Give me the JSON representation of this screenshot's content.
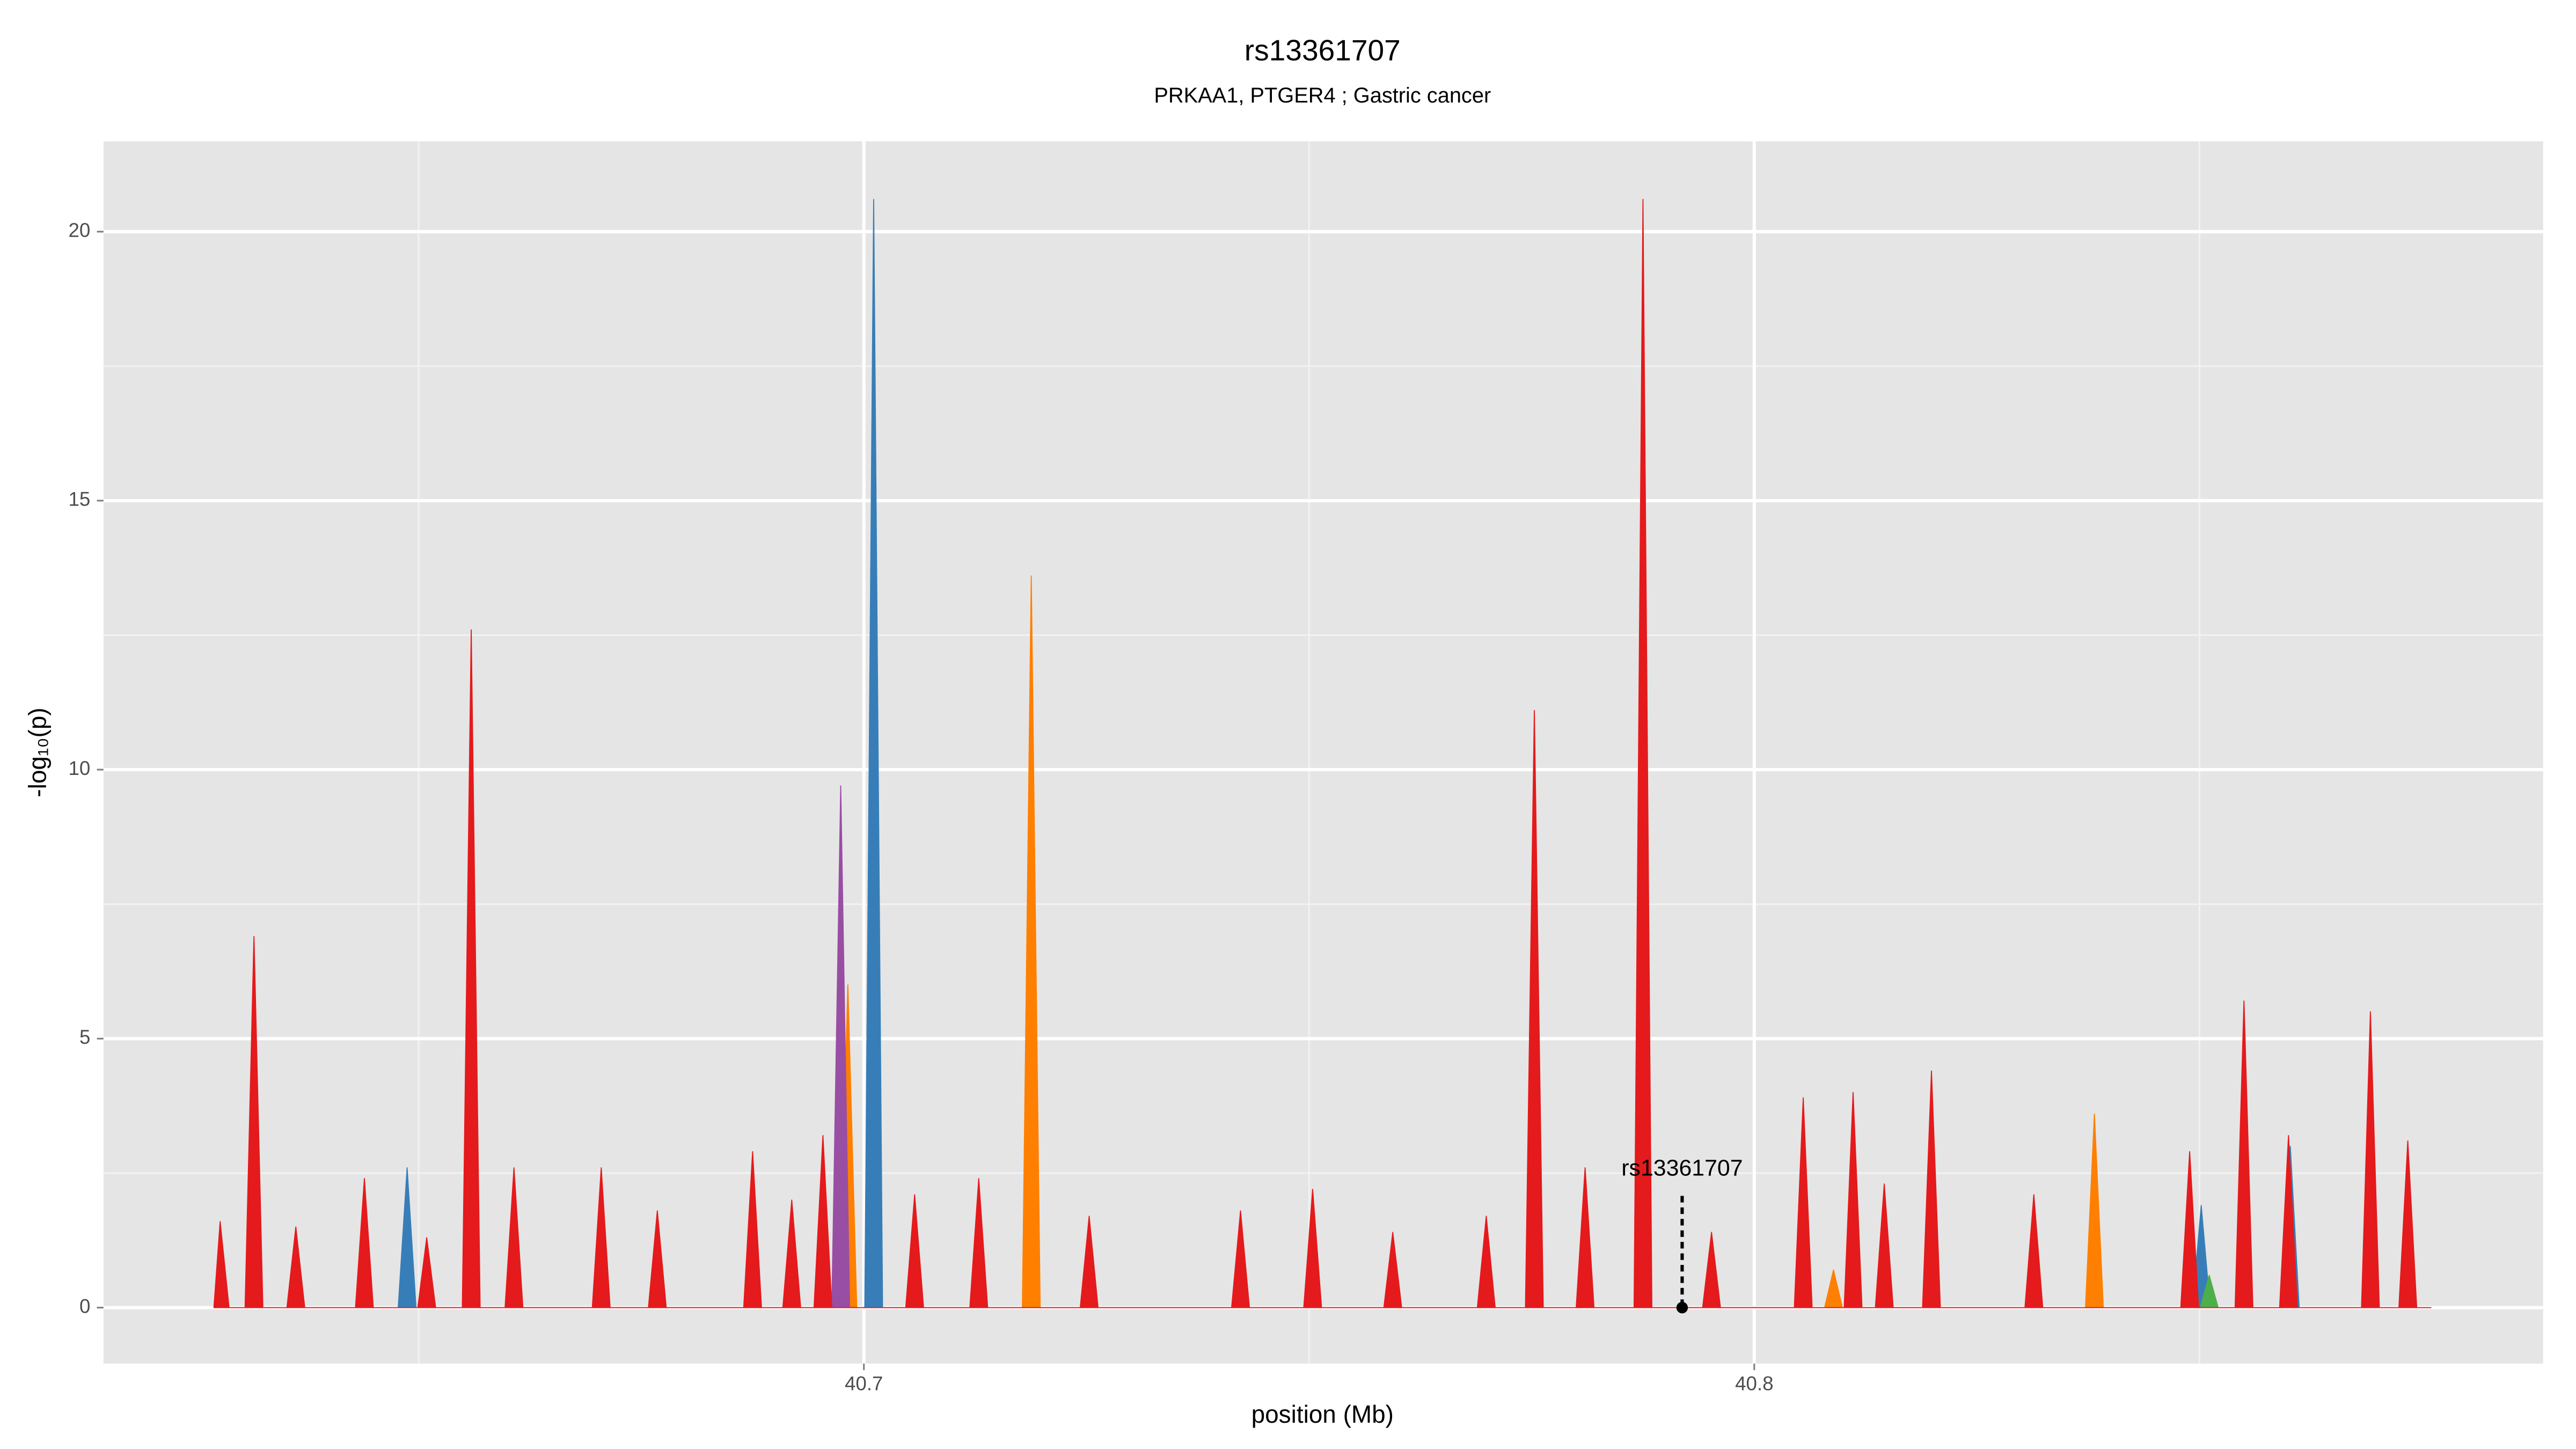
{
  "chart_data": {
    "type": "area",
    "title": "rs13361707",
    "subtitle": "PRKAA1, PTGER4 ; Gastric cancer",
    "x_label": "position (Mb)",
    "y_label": "-log₁₀(p)",
    "xlim": [
      40.6146,
      40.8886
    ],
    "ylim": [
      -1.04,
      21.68
    ],
    "xticks": [
      40.7,
      40.8
    ],
    "yticks": [
      0,
      5,
      10,
      15,
      20
    ],
    "grid": true,
    "annotation": {
      "label": "rs13361707",
      "x": 40.7919,
      "y": 0
    },
    "series": [
      {
        "color": "#ff7f00",
        "x": [
          40.6972,
          40.6982,
          40.6992,
          40.7178,
          40.7188,
          40.7198,
          40.8079,
          40.8089,
          40.8099,
          40.8372,
          40.8382,
          40.8392
        ],
        "values": [
          0,
          6,
          0,
          0,
          13.6,
          0,
          0,
          0.7,
          0,
          0,
          3.6,
          0
        ]
      },
      {
        "color": "#984ea3",
        "x": [
          40.6964,
          40.6974,
          40.6984
        ],
        "values": [
          0,
          9.7,
          0
        ]
      },
      {
        "color": "#377eb8",
        "x": [
          40.6477,
          40.6487,
          40.6497,
          40.7001,
          40.7011,
          40.7021,
          40.8492,
          40.8502,
          40.8512,
          40.8592,
          40.8602,
          40.8612
        ],
        "values": [
          0,
          2.6,
          0,
          0,
          20.6,
          0,
          0,
          1.9,
          0,
          0,
          3,
          0
        ]
      },
      {
        "color": "#4daf4a",
        "x": [
          40.8501,
          40.8511,
          40.8521
        ],
        "values": [
          0,
          0.6,
          0
        ]
      },
      {
        "color": "#e41a1c",
        "x": [
          40.627,
          40.6277,
          40.6287,
          40.6305,
          40.6315,
          40.6325,
          40.6352,
          40.6362,
          40.6372,
          40.6429,
          40.6439,
          40.6449,
          40.6499,
          40.6509,
          40.6519,
          40.6549,
          40.6559,
          40.6569,
          40.6597,
          40.6607,
          40.6617,
          40.6695,
          40.6705,
          40.6715,
          40.6758,
          40.6768,
          40.6778,
          40.6865,
          40.6875,
          40.6885,
          40.6909,
          40.6919,
          40.6929,
          40.6944,
          40.6954,
          40.6964,
          40.7047,
          40.7057,
          40.7067,
          40.7119,
          40.7129,
          40.7139,
          40.7243,
          40.7253,
          40.7263,
          40.7413,
          40.7423,
          40.7433,
          40.7494,
          40.7504,
          40.7514,
          40.7584,
          40.7594,
          40.7604,
          40.7689,
          40.7699,
          40.7709,
          40.7743,
          40.7753,
          40.7763,
          40.78,
          40.781,
          40.782,
          40.7865,
          40.7875,
          40.7885,
          40.7942,
          40.7952,
          40.7962,
          40.8045,
          40.8055,
          40.8065,
          40.8101,
          40.8111,
          40.8121,
          40.8136,
          40.8146,
          40.8156,
          40.8189,
          40.8199,
          40.8209,
          40.8304,
          40.8314,
          40.8324,
          40.8479,
          40.8489,
          40.8499,
          40.854,
          40.855,
          40.856,
          40.859,
          40.86,
          40.861,
          40.8682,
          40.8692,
          40.8702,
          40.8724,
          40.8734,
          40.8744,
          40.876
        ],
        "values": [
          0,
          1.6,
          0,
          0,
          6.9,
          0,
          0,
          1.5,
          0,
          0,
          2.4,
          0,
          0,
          1.3,
          0,
          0,
          12.6,
          0,
          0,
          2.6,
          0,
          0,
          2.6,
          0,
          0,
          1.8,
          0,
          0,
          2.9,
          0,
          0,
          2,
          0,
          0,
          3.2,
          0,
          0,
          2.1,
          0,
          0,
          2.4,
          0,
          0,
          1.7,
          0,
          0,
          1.8,
          0,
          0,
          2.2,
          0,
          0,
          1.4,
          0,
          0,
          1.7,
          0,
          0,
          11.1,
          0,
          0,
          2.6,
          0,
          0,
          20.6,
          0,
          0,
          1.4,
          0,
          0,
          3.9,
          0,
          0,
          4,
          0,
          0,
          2.3,
          0,
          0,
          4.4,
          0,
          0,
          2.1,
          0,
          0,
          2.9,
          0,
          0,
          5.7,
          0,
          0,
          3.2,
          0,
          0,
          5.5,
          0,
          0,
          3.1,
          0,
          0
        ]
      }
    ]
  }
}
